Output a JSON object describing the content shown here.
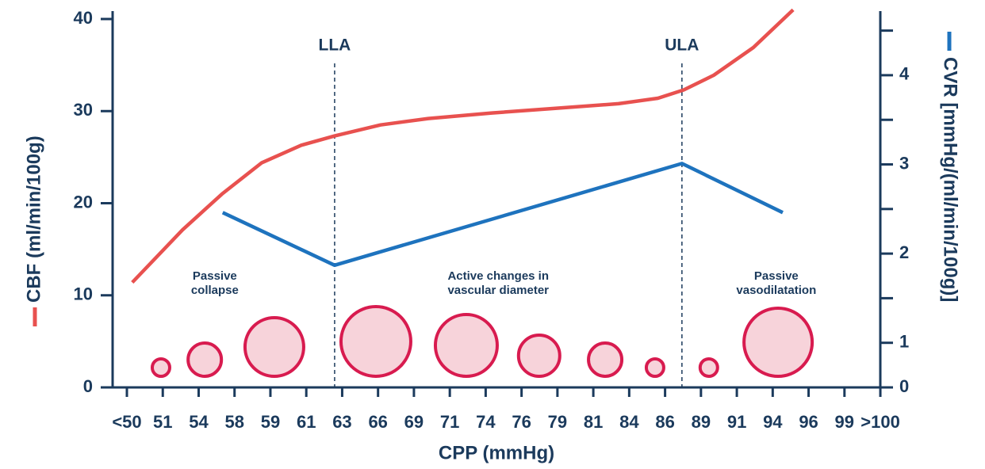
{
  "chart_data": {
    "type": "line",
    "xlabel": "CPP (mmHg)",
    "ylabel": "CBF (ml/min/100g)",
    "y2label": "CVR [mmHg/(ml/min/100g)]",
    "categories": [
      "<50",
      "51",
      "54",
      "58",
      "59",
      "61",
      "63",
      "66",
      "69",
      "71",
      "74",
      "76",
      "79",
      "81",
      "84",
      "86",
      "89",
      "91",
      "94",
      "96",
      "99",
      ">100"
    ],
    "ylim": [
      0,
      40
    ],
    "yticks": [
      0,
      10,
      20,
      30,
      40
    ],
    "y2lim": [
      0.5,
      4.63
    ],
    "y2ticks": [
      {
        "value": 0.5,
        "label": "0"
      },
      1,
      2,
      3,
      4
    ],
    "y2minorticks": [
      1.5,
      2.5,
      3.5,
      4.5
    ],
    "series": [
      {
        "color": "#e8514f",
        "x": [
          0.15,
          1.55,
          2.65,
          3.76,
          4.86,
          5.79,
          7.07,
          8.4,
          10.17,
          11.94,
          13.7,
          14.8,
          15.52,
          16.36,
          17.46,
          18.57
        ],
        "values": [
          11.4,
          17.1,
          21.0,
          24.4,
          26.3,
          27.3,
          28.5,
          29.2,
          29.8,
          30.3,
          30.8,
          31.4,
          32.3,
          33.9,
          36.9,
          41.0
        ]
      },
      {
        "color": "#1e73be",
        "axis": "y2",
        "x": [
          2.67,
          5.79,
          15.47,
          18.28
        ],
        "values": [
          2.46,
          1.87,
          3.01,
          2.46
        ]
      }
    ],
    "vessels": {
      "x": [
        0.95,
        2.17,
        4.11,
        6.94,
        9.46,
        11.49,
        13.33,
        14.72,
        16.22,
        18.15
      ],
      "sizes": [
        11,
        21,
        37,
        44,
        39,
        26,
        21,
        11,
        11,
        43
      ],
      "color": "#d81b4f",
      "fill": "#f7d3da"
    },
    "limits": [
      {
        "label": "LLA",
        "x": 5.79
      },
      {
        "label": "ULA",
        "x": 15.47
      }
    ],
    "annotations": [
      {
        "lines": [
          "Passive",
          "collapse"
        ],
        "x": 2.45
      },
      {
        "lines": [
          "Active changes in",
          "vascular diameter"
        ],
        "x": 10.35
      },
      {
        "lines": [
          "Passive",
          "vasodilatation"
        ],
        "x": 18.1
      }
    ]
  }
}
